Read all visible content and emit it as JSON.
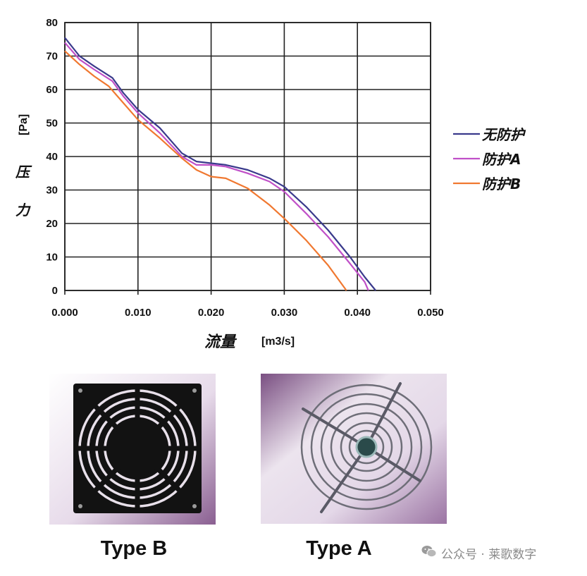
{
  "chart_data": {
    "type": "line",
    "title": "",
    "xlabel": "流量",
    "xunit": "[m3/s]",
    "ylabel": "压力",
    "yunit": "[Pa]",
    "xlim": [
      0,
      0.05
    ],
    "ylim": [
      0,
      80
    ],
    "x_ticks": [
      "0.000",
      "0.010",
      "0.020",
      "0.030",
      "0.040",
      "0.050"
    ],
    "y_ticks": [
      "0",
      "10",
      "20",
      "30",
      "40",
      "50",
      "60",
      "70",
      "80"
    ],
    "grid": true,
    "legend_position": "right",
    "series": [
      {
        "name": "无防护",
        "color": "#3a3a8c",
        "x": [
          0.0,
          0.002,
          0.004,
          0.0065,
          0.008,
          0.01,
          0.013,
          0.016,
          0.018,
          0.02,
          0.022,
          0.025,
          0.028,
          0.03,
          0.033,
          0.036,
          0.039,
          0.041,
          0.0425
        ],
        "y": [
          75.5,
          70,
          67,
          63.5,
          59,
          54,
          48.5,
          41,
          38.5,
          38,
          37.5,
          36,
          33.5,
          31,
          25,
          18,
          10,
          4,
          0
        ]
      },
      {
        "name": "防护A",
        "color": "#c050c8",
        "x": [
          0.0,
          0.002,
          0.004,
          0.0065,
          0.008,
          0.01,
          0.013,
          0.016,
          0.018,
          0.02,
          0.022,
          0.025,
          0.028,
          0.03,
          0.033,
          0.036,
          0.039,
          0.041,
          0.0415
        ],
        "y": [
          74,
          69,
          66,
          62.5,
          58,
          53,
          47,
          40,
          37.5,
          37.5,
          37,
          35,
          32.5,
          29.5,
          23,
          16,
          8,
          2.5,
          0
        ]
      },
      {
        "name": "防护B",
        "color": "#f07830",
        "x": [
          0.0,
          0.002,
          0.004,
          0.006,
          0.008,
          0.01,
          0.013,
          0.016,
          0.018,
          0.02,
          0.022,
          0.025,
          0.028,
          0.03,
          0.033,
          0.036,
          0.0385
        ],
        "y": [
          71.5,
          67.5,
          64,
          61,
          56,
          51,
          45.5,
          39.5,
          36,
          34,
          33.5,
          30.5,
          25.5,
          21.5,
          15,
          7.5,
          0
        ]
      }
    ]
  },
  "photos": {
    "left_caption": "Type B",
    "right_caption": "Type A"
  },
  "watermark": {
    "text": "公众号 · 莱歌数字"
  }
}
